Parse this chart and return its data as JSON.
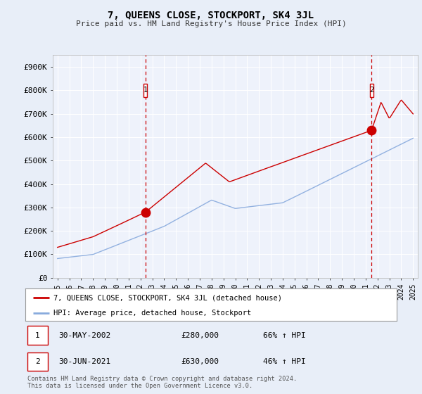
{
  "title": "7, QUEENS CLOSE, STOCKPORT, SK4 3JL",
  "subtitle": "Price paid vs. HM Land Registry's House Price Index (HPI)",
  "ylabel_ticks": [
    "£0",
    "£100K",
    "£200K",
    "£300K",
    "£400K",
    "£500K",
    "£600K",
    "£700K",
    "£800K",
    "£900K"
  ],
  "ytick_values": [
    0,
    100000,
    200000,
    300000,
    400000,
    500000,
    600000,
    700000,
    800000,
    900000
  ],
  "ylim": [
    0,
    950000
  ],
  "xlim_start": 1994.6,
  "xlim_end": 2025.4,
  "background_color": "#e8eef8",
  "plot_bg_color": "#eef2fb",
  "red_line_color": "#cc0000",
  "blue_line_color": "#88aadd",
  "marker1_x": 2002.42,
  "marker1_y": 280000,
  "marker2_x": 2021.5,
  "marker2_y": 630000,
  "annotation1": {
    "label": "1",
    "date": "30-MAY-2002",
    "price": "£280,000",
    "pct": "66% ↑ HPI"
  },
  "annotation2": {
    "label": "2",
    "date": "30-JUN-2021",
    "price": "£630,000",
    "pct": "46% ↑ HPI"
  },
  "legend_line1": "7, QUEENS CLOSE, STOCKPORT, SK4 3JL (detached house)",
  "legend_line2": "HPI: Average price, detached house, Stockport",
  "footer": "Contains HM Land Registry data © Crown copyright and database right 2024.\nThis data is licensed under the Open Government Licence v3.0.",
  "xtick_years": [
    1995,
    1996,
    1997,
    1998,
    1999,
    2000,
    2001,
    2002,
    2003,
    2004,
    2005,
    2006,
    2007,
    2008,
    2009,
    2010,
    2011,
    2012,
    2013,
    2014,
    2015,
    2016,
    2017,
    2018,
    2019,
    2020,
    2021,
    2022,
    2023,
    2024,
    2025
  ]
}
